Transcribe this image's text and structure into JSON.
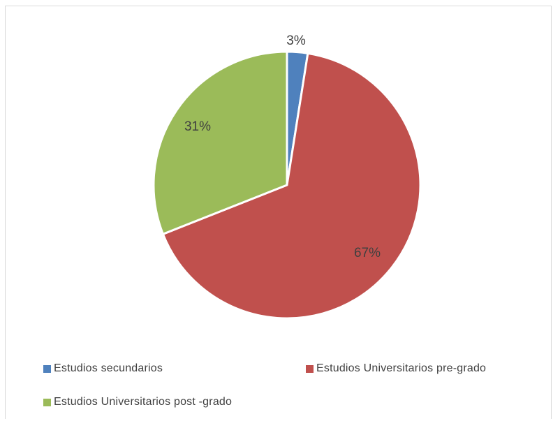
{
  "chart_data": {
    "type": "pie",
    "title": "",
    "categories": [
      "Estudios secundarios",
      "Estudios Universitarios pre-grado",
      "Estudios Universitarios post -grado"
    ],
    "values": [
      2.5,
      66.5,
      31
    ],
    "labels": [
      "3%",
      "67%",
      "31%"
    ],
    "colors": [
      "#4f81bd",
      "#c0504d",
      "#9bbb59"
    ],
    "legend_position": "bottom",
    "start_angle": "12 o'clock, clockwise"
  }
}
